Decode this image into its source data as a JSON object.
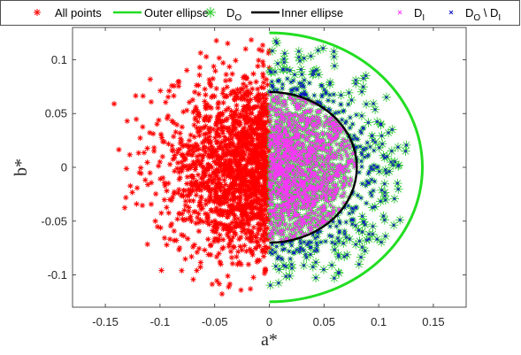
{
  "chart_data": {
    "type": "scatter",
    "title": "",
    "xlabel": "a*",
    "ylabel": "b*",
    "xlim": [
      -0.18,
      0.18
    ],
    "ylim": [
      -0.13,
      0.13
    ],
    "xticks": [
      -0.15,
      -0.1,
      -0.05,
      0,
      0.05,
      0.1,
      0.15
    ],
    "xtick_labels": [
      "-0.15",
      "-0.1",
      "-0.05",
      "0",
      "0.05",
      "0.1",
      "0.15"
    ],
    "yticks": [
      -0.1,
      -0.05,
      0,
      0.05,
      0.1
    ],
    "ytick_labels": [
      "-0.1",
      "-0.05",
      "0",
      "0.05",
      "0.1"
    ],
    "grid": false,
    "legend_placement": "top",
    "colors": {
      "all_points": "#ff0000",
      "outer_ellipse": "#22dd22",
      "d_o": "#33cc33",
      "inner_ellipse": "#000000",
      "d_i": "#ff33ff",
      "d_o_minus_d_i": "#1111cc"
    },
    "legend": {
      "all_points": "All points",
      "outer_ellipse": "Outer ellipse",
      "d_o_main": "D",
      "d_o_sub": "O",
      "inner_ellipse": "Inner ellipse",
      "d_i_main": "D",
      "d_i_sub": "I",
      "d_diff_main1": "D",
      "d_diff_sub1": "O",
      "d_diff_sep": " \\ D",
      "d_diff_sub2": "I"
    },
    "series": [
      {
        "key": "all_points",
        "marker": "asterisk",
        "distribution": "half-disc a* <= 0",
        "x_range": [
          -0.14,
          0
        ],
        "y_range": [
          -0.12,
          0.12
        ]
      },
      {
        "key": "outer_ellipse",
        "marker": "line",
        "center": [
          0,
          0
        ],
        "semi_axis_a": 0.14,
        "semi_axis_b": 0.125,
        "a_range": [
          0,
          0.14
        ]
      },
      {
        "key": "d_o",
        "marker": "asterisk",
        "distribution": "half-disc a* >= 0, inside outer ellipse",
        "x_range": [
          0,
          0.135
        ],
        "y_range": [
          -0.12,
          0.12
        ]
      },
      {
        "key": "inner_ellipse",
        "marker": "line",
        "center": [
          0,
          0
        ],
        "semi_axis_a": 0.08,
        "semi_axis_b": 0.07,
        "a_range": [
          0,
          0.08
        ]
      },
      {
        "key": "d_i",
        "marker": "x",
        "distribution": "inside inner ellipse"
      },
      {
        "key": "d_o_minus_d_i",
        "marker": "x",
        "distribution": "between inner and outer ellipse"
      }
    ]
  }
}
